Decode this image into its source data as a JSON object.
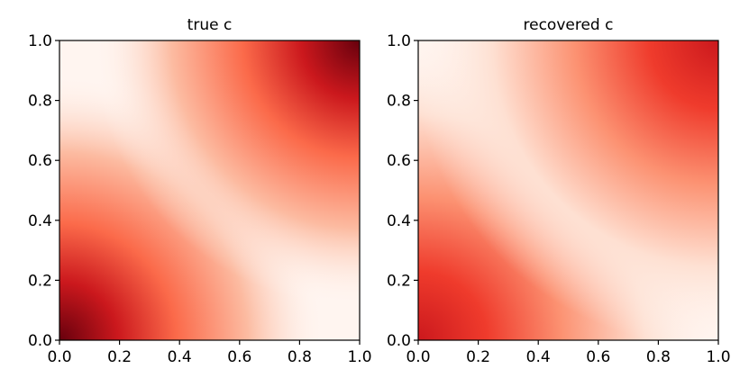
{
  "chart_data": [
    {
      "type": "heatmap",
      "title": "true c",
      "xlabel": "",
      "ylabel": "",
      "xlim": [
        0.0,
        1.0
      ],
      "ylim": [
        0.0,
        1.0
      ],
      "xticks": [
        "0.0",
        "0.2",
        "0.4",
        "0.6",
        "0.8",
        "1.0"
      ],
      "yticks": [
        "0.0",
        "0.2",
        "0.4",
        "0.6",
        "0.8",
        "1.0"
      ],
      "colormap": "Reds",
      "grid": false,
      "legend": "none",
      "field": {
        "description_of_shape": "intensity peaks at corners (0,0) and (1,1), minimal along anti-diagonal x+y=1",
        "peak_corner_low": [
          0.0,
          0.0
        ],
        "peak_corner_high": [
          1.0,
          1.0
        ],
        "peak_intensity": 1.0,
        "min_line": "x + y = 1"
      }
    },
    {
      "type": "heatmap",
      "title": "recovered c",
      "xlabel": "",
      "ylabel": "",
      "xlim": [
        0.0,
        1.0
      ],
      "ylim": [
        0.0,
        1.0
      ],
      "xticks": [
        "0.0",
        "0.2",
        "0.4",
        "0.6",
        "0.8",
        "1.0"
      ],
      "yticks": [
        "0.0",
        "0.2",
        "0.4",
        "0.6",
        "0.8",
        "1.0"
      ],
      "colormap": "Reds",
      "grid": false,
      "legend": "none",
      "field": {
        "description_of_shape": "smoother version: intensity highest near corners (0,0) and (1,1), lowest along anti-diagonal",
        "peak_corner_low": [
          0.0,
          0.0
        ],
        "peak_corner_high": [
          1.0,
          1.0
        ],
        "peak_intensity": 0.85,
        "min_line": "x + y = 1"
      }
    }
  ]
}
